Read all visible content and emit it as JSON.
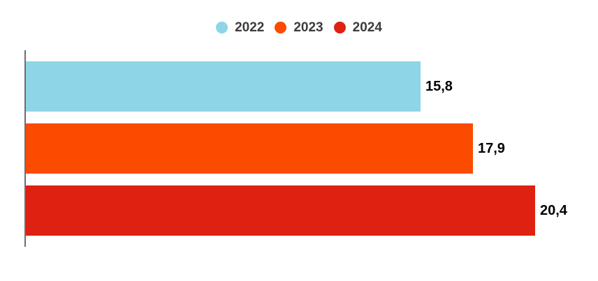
{
  "chart_data": {
    "type": "bar",
    "orientation": "horizontal",
    "title": "",
    "xlabel": "",
    "ylabel": "",
    "xlim": [
      0,
      20.4
    ],
    "grid": false,
    "legend_position": "top",
    "background_color": "#FFFFFF",
    "axis_color": "#6E6E6E",
    "value_label_color": "#000000",
    "legend_text_color": "#3C3C3C",
    "series": [
      {
        "label": "2022",
        "value": 15.8,
        "display_value": "15,8",
        "color": "#8ED5E8"
      },
      {
        "label": "2023",
        "value": 17.9,
        "display_value": "17,9",
        "color": "#FA4B00"
      },
      {
        "label": "2024",
        "value": 20.4,
        "display_value": "20,4",
        "color": "#DE2110"
      }
    ]
  }
}
